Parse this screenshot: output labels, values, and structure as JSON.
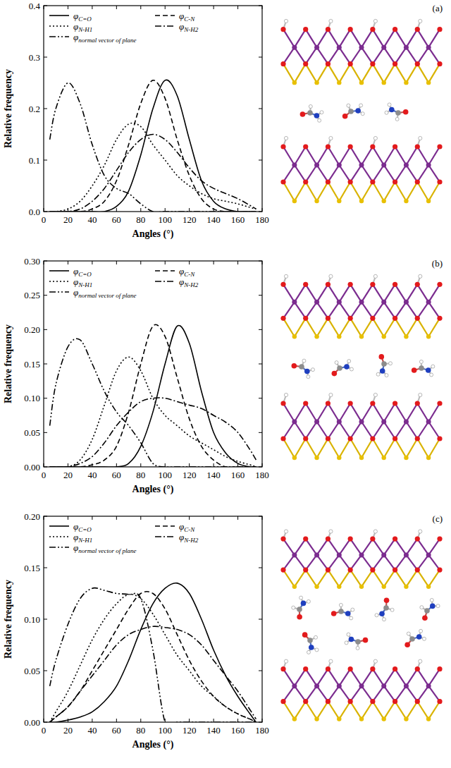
{
  "chart_data": [
    {
      "type": "line",
      "title": "(a)",
      "x_label": "Angles (°)",
      "y_label": "Relative frequency",
      "x": [
        5,
        10,
        20,
        30,
        40,
        50,
        60,
        70,
        80,
        90,
        100,
        110,
        120,
        130,
        140,
        150,
        160,
        170,
        175
      ],
      "xlim": [
        0,
        180
      ],
      "xticks": [
        0,
        20,
        40,
        60,
        80,
        100,
        120,
        140,
        160,
        180
      ],
      "ylim": [
        0,
        0.4
      ],
      "yticks": [
        {
          "value": 0,
          "label": "0.0"
        },
        {
          "value": 0.1,
          "label": "0.1"
        },
        {
          "value": 0.2,
          "label": "0.2"
        },
        {
          "value": 0.3,
          "label": "0.3"
        },
        {
          "value": 0.4,
          "label": "0.4"
        }
      ],
      "legend": "upper left",
      "series": [
        {
          "name": "φC=O",
          "color": "#000000",
          "line_style": "solid",
          "values": [
            0,
            0,
            0,
            0,
            0,
            0,
            0.01,
            0.04,
            0.11,
            0.2,
            0.255,
            0.225,
            0.14,
            0.06,
            0.02,
            0.005,
            0,
            0,
            0
          ]
        },
        {
          "name": "φC-N",
          "color": "#000000",
          "line_style": "dashed",
          "values": [
            0,
            0,
            0,
            0,
            0.005,
            0.02,
            0.06,
            0.13,
            0.21,
            0.255,
            0.22,
            0.14,
            0.07,
            0.025,
            0.005,
            0,
            0,
            0,
            0
          ]
        },
        {
          "name": "φN-H1",
          "color": "#000000",
          "line_style": "dotted",
          "values": [
            0,
            0,
            0.005,
            0.02,
            0.05,
            0.09,
            0.14,
            0.17,
            0.165,
            0.13,
            0.1,
            0.07,
            0.05,
            0.035,
            0.025,
            0.02,
            0.015,
            0.008,
            0.005
          ]
        },
        {
          "name": "φN-H2",
          "color": "#000000",
          "line_style": "dashdot",
          "values": [
            0,
            0,
            0,
            0.005,
            0.02,
            0.045,
            0.08,
            0.115,
            0.14,
            0.15,
            0.14,
            0.115,
            0.085,
            0.06,
            0.045,
            0.035,
            0.025,
            0.012,
            0.005
          ]
        },
        {
          "name": "φnormal vector of plane",
          "color": "#000000",
          "line_style": "dashdotdot",
          "values": [
            0.14,
            0.2,
            0.25,
            0.21,
            0.13,
            0.07,
            0.045,
            0.035,
            0.015,
            0,
            0,
            0,
            0,
            0,
            0,
            0,
            0,
            0,
            0
          ]
        }
      ]
    },
    {
      "type": "line",
      "title": "(b)",
      "x_label": "Angles (°)",
      "y_label": "Relative frequency",
      "x": [
        5,
        10,
        20,
        30,
        40,
        50,
        60,
        70,
        80,
        90,
        100,
        110,
        120,
        130,
        140,
        150,
        160,
        170,
        175
      ],
      "xlim": [
        0,
        180
      ],
      "xticks": [
        0,
        20,
        40,
        60,
        80,
        100,
        120,
        140,
        160,
        180
      ],
      "ylim": [
        0,
        0.3
      ],
      "yticks": [
        {
          "value": 0,
          "label": "0.00"
        },
        {
          "value": 0.05,
          "label": "0.05"
        },
        {
          "value": 0.1,
          "label": "0.10"
        },
        {
          "value": 0.15,
          "label": "0.15"
        },
        {
          "value": 0.2,
          "label": "0.20"
        },
        {
          "value": 0.25,
          "label": "0.25"
        },
        {
          "value": 0.3,
          "label": "0.30"
        }
      ],
      "legend": "upper left",
      "series": [
        {
          "name": "φC=O",
          "color": "#000000",
          "line_style": "solid",
          "values": [
            0,
            0,
            0,
            0,
            0,
            0,
            0,
            0.005,
            0.03,
            0.08,
            0.15,
            0.205,
            0.18,
            0.11,
            0.05,
            0.02,
            0.005,
            0,
            0
          ]
        },
        {
          "name": "φC-N",
          "color": "#000000",
          "line_style": "dashed",
          "values": [
            0,
            0,
            0,
            0,
            0.003,
            0.01,
            0.03,
            0.08,
            0.15,
            0.205,
            0.19,
            0.13,
            0.07,
            0.03,
            0.01,
            0,
            0,
            0,
            0
          ]
        },
        {
          "name": "φN-H1",
          "color": "#000000",
          "line_style": "dotted",
          "values": [
            0,
            0,
            0,
            0.01,
            0.04,
            0.09,
            0.14,
            0.16,
            0.14,
            0.1,
            0.075,
            0.06,
            0.045,
            0.035,
            0.025,
            0.015,
            0.008,
            0.003,
            0
          ]
        },
        {
          "name": "φN-H2",
          "color": "#000000",
          "line_style": "dashdot",
          "values": [
            0,
            0,
            0,
            0.005,
            0.015,
            0.035,
            0.06,
            0.08,
            0.095,
            0.1,
            0.1,
            0.095,
            0.09,
            0.085,
            0.075,
            0.065,
            0.05,
            0.025,
            0.01
          ]
        },
        {
          "name": "φnormal vector of plane",
          "color": "#000000",
          "line_style": "dashdotdot",
          "values": [
            0.06,
            0.12,
            0.175,
            0.185,
            0.15,
            0.11,
            0.08,
            0.06,
            0.035,
            0.005,
            0,
            0,
            0,
            0,
            0,
            0,
            0,
            0,
            0
          ]
        }
      ]
    },
    {
      "type": "line",
      "title": "(c)",
      "x_label": "Angles (°)",
      "y_label": "Relative frequency",
      "x": [
        5,
        10,
        20,
        30,
        40,
        50,
        60,
        70,
        80,
        90,
        100,
        110,
        120,
        130,
        140,
        150,
        160,
        170,
        175
      ],
      "xlim": [
        0,
        180
      ],
      "xticks": [
        0,
        20,
        40,
        60,
        80,
        100,
        120,
        140,
        160,
        180
      ],
      "ylim": [
        0,
        0.2
      ],
      "yticks": [
        {
          "value": 0,
          "label": "0.00"
        },
        {
          "value": 0.05,
          "label": "0.05"
        },
        {
          "value": 0.1,
          "label": "0.10"
        },
        {
          "value": 0.15,
          "label": "0.15"
        },
        {
          "value": 0.2,
          "label": "0.20"
        }
      ],
      "legend": "upper left",
      "series": [
        {
          "name": "φC=O",
          "color": "#000000",
          "line_style": "solid",
          "values": [
            0,
            0,
            0.002,
            0.005,
            0.01,
            0.02,
            0.035,
            0.06,
            0.09,
            0.115,
            0.13,
            0.135,
            0.125,
            0.1,
            0.07,
            0.045,
            0.025,
            0.008,
            0
          ]
        },
        {
          "name": "φC-N",
          "color": "#000000",
          "line_style": "dashed",
          "values": [
            0,
            0.005,
            0.015,
            0.03,
            0.05,
            0.07,
            0.09,
            0.11,
            0.125,
            0.125,
            0.11,
            0.085,
            0.06,
            0.04,
            0.025,
            0.015,
            0.008,
            0.003,
            0
          ]
        },
        {
          "name": "φN-H1",
          "color": "#000000",
          "line_style": "dotted",
          "values": [
            0,
            0.01,
            0.03,
            0.055,
            0.08,
            0.1,
            0.115,
            0.124,
            0.12,
            0.105,
            0.085,
            0.065,
            0.05,
            0.035,
            0.025,
            0.015,
            0.008,
            0.003,
            0
          ]
        },
        {
          "name": "φN-H2",
          "color": "#000000",
          "line_style": "dashdot",
          "values": [
            0,
            0.005,
            0.015,
            0.03,
            0.045,
            0.06,
            0.075,
            0.085,
            0.09,
            0.093,
            0.092,
            0.09,
            0.085,
            0.075,
            0.06,
            0.045,
            0.03,
            0.012,
            0.003
          ]
        },
        {
          "name": "φnormal vector of plane",
          "color": "#000000",
          "line_style": "dashdotdot",
          "values": [
            0.035,
            0.06,
            0.095,
            0.12,
            0.13,
            0.128,
            0.125,
            0.124,
            0.12,
            0.07,
            0,
            0,
            0,
            0,
            0,
            0,
            0,
            0,
            0
          ]
        }
      ]
    }
  ]
}
